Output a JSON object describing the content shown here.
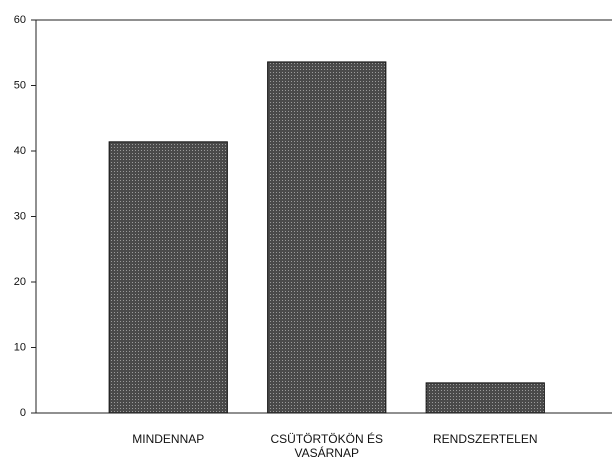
{
  "chart_data": {
    "type": "bar",
    "categories": [
      "MINDENNAP",
      "CSÜTÖRTÖKÖN ÉS VASÁRNAP",
      "RENDSZERTELEN"
    ],
    "values": [
      41.4,
      53.6,
      4.6
    ],
    "color": "#5a5a5a",
    "ylim": [
      0,
      60
    ],
    "yticks": [
      0,
      10,
      20,
      30,
      40,
      50,
      60
    ]
  }
}
